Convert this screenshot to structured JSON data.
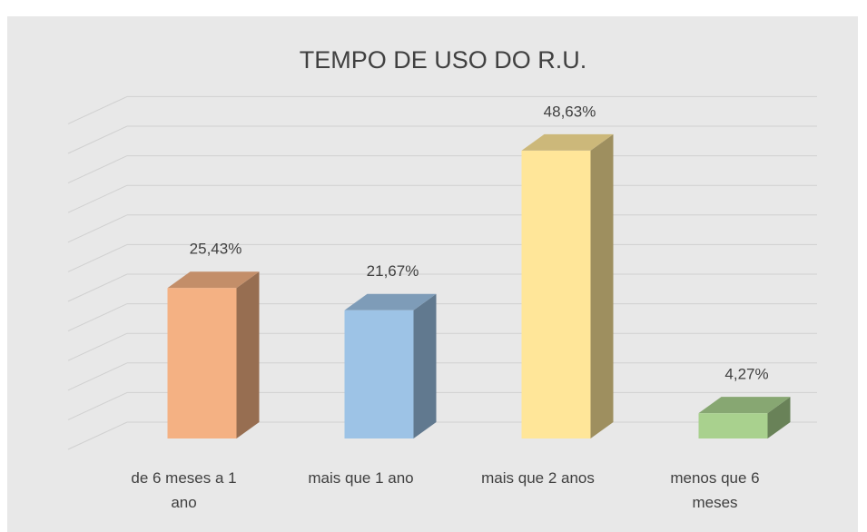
{
  "chart_data": {
    "type": "bar3d",
    "title": "TEMPO DE USO DO R.U.",
    "categories": [
      "de 6 meses a 1 ano",
      "mais que 1 ano",
      "mais que 2 anos",
      "menos que 6 meses"
    ],
    "series": [
      {
        "name": null,
        "colors": [
          "#f4b183",
          "#9dc3e6",
          "#ffe699",
          "#a9d18e"
        ],
        "values": [
          25.43,
          21.67,
          48.63,
          4.27
        ],
        "value_labels": [
          "25,43%",
          "21,67%",
          "48,63%",
          "4,27%"
        ]
      }
    ],
    "ylim": [
      0,
      55
    ],
    "yticks": [
      0,
      5,
      10,
      15,
      20,
      25,
      30,
      35,
      40,
      45,
      50,
      55
    ],
    "grid": true
  }
}
